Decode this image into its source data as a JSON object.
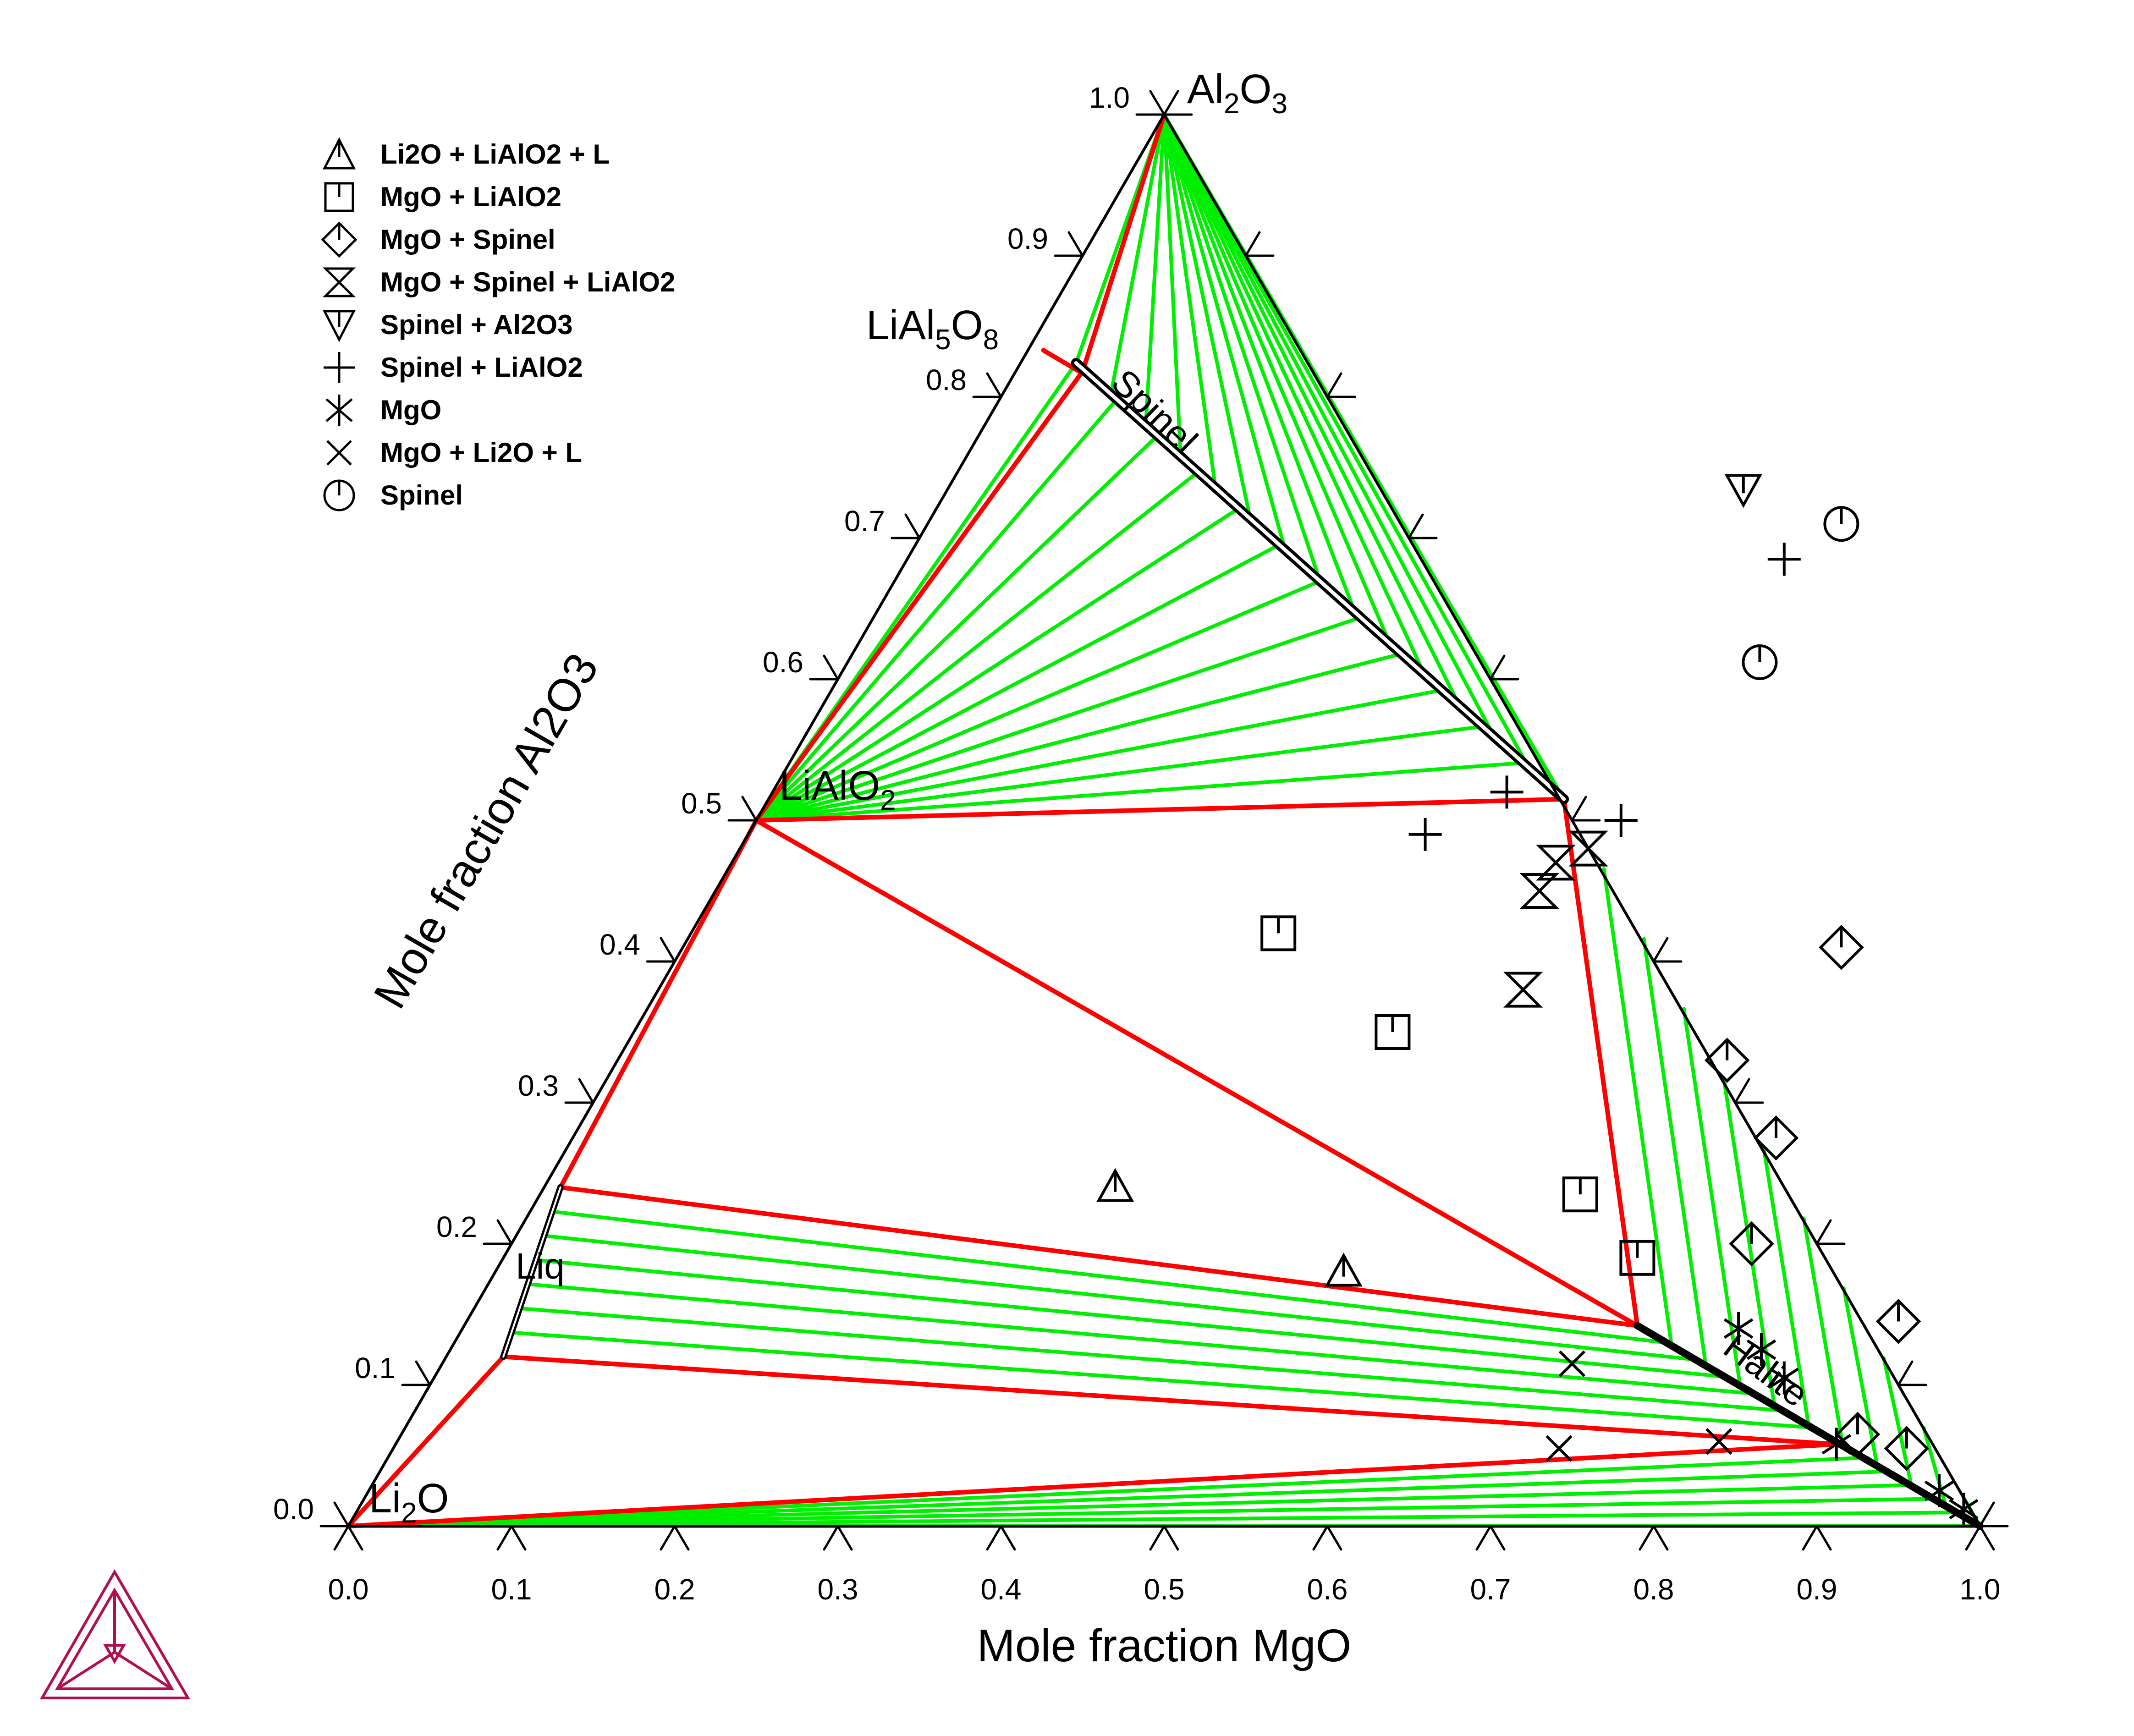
{
  "chart_data": {
    "type": "ternary-phase-diagram",
    "components": {
      "bottom_left": "Li2O",
      "bottom_right": "MgO",
      "top": "Al2O3"
    },
    "xlabel": "Mole fraction MgO",
    "ylabel": "Mole fraction Al2O3",
    "xlim": [
      0,
      1
    ],
    "ylim": [
      0,
      1
    ],
    "ticks": [
      "0.0",
      "0.1",
      "0.2",
      "0.3",
      "0.4",
      "0.5",
      "0.6",
      "0.7",
      "0.8",
      "0.9",
      "1.0"
    ],
    "corner_labels": {
      "top": {
        "main": "Al",
        "sub1": "2",
        "mid": "O",
        "sub2": "3"
      },
      "bottom_left": {
        "main": "Li",
        "sub1": "2",
        "mid": "O",
        "sub2": ""
      }
    },
    "phase_labels": {
      "LiAl5O8": {
        "main": "LiAl",
        "sub1": "5",
        "mid": "O",
        "sub2": "8"
      },
      "LiAlO2": {
        "main": "LiAlO",
        "sub1": "2",
        "mid": "",
        "sub2": ""
      },
      "spinel": "Spinel",
      "halite": "Halite",
      "liquid": "Liq"
    },
    "legend": [
      {
        "symbol": "triangle-up",
        "label": "Li2O + LiAlO2 + L"
      },
      {
        "symbol": "square",
        "label": "MgO + LiAlO2"
      },
      {
        "symbol": "diamond",
        "label": "MgO + Spinel"
      },
      {
        "symbol": "hourglass",
        "label": "MgO + Spinel + LiAlO2"
      },
      {
        "symbol": "triangle-down",
        "label": "Spinel + Al2O3"
      },
      {
        "symbol": "plus",
        "label": "Spinel + LiAlO2"
      },
      {
        "symbol": "asterisk",
        "label": "MgO"
      },
      {
        "symbol": "cross",
        "label": "MgO + Li2O + L"
      },
      {
        "symbol": "circle",
        "label": "Spinel"
      }
    ],
    "colors": {
      "tie_line": "#00ee00",
      "boundary": "#ff0000",
      "phase": "#000000",
      "logo": "#b01050"
    },
    "phase_boundaries": [
      {
        "name": "Li2O-Liq tie triangle edge",
        "x": [
          0.0,
          0.095
        ],
        "y": [
          0.0,
          0.12
        ]
      },
      {
        "name": "Liq-Halite lower edge",
        "x": [
          0.095,
          0.912
        ],
        "y": [
          0.12,
          0.058
        ]
      },
      {
        "name": "Li2O-Halite edge",
        "x": [
          0.0,
          0.912
        ],
        "y": [
          0.0,
          0.058
        ]
      },
      {
        "name": "Liq-LiAlO2 edge",
        "x": [
          0.13,
          0.25
        ],
        "y": [
          0.24,
          0.5
        ]
      },
      {
        "name": "Liq-Halite upper edge",
        "x": [
          0.13,
          0.79
        ],
        "y": [
          0.24,
          0.142
        ]
      },
      {
        "name": "LiAlO2-Halite edge",
        "x": [
          0.25,
          0.79
        ],
        "y": [
          0.5,
          0.142
        ]
      },
      {
        "name": "LiAlO2-Spinel edge",
        "x": [
          0.25,
          0.745
        ],
        "y": [
          0.5,
          0.515
        ]
      },
      {
        "name": "Spinel-Halite edge",
        "x": [
          0.745,
          0.79
        ],
        "y": [
          0.515,
          0.142
        ]
      },
      {
        "name": "LiAlO2-LiAl5O8 edge",
        "x": [
          0.25,
          0.45
        ],
        "y": [
          0.5,
          0.818
        ]
      },
      {
        "name": "LiAl5O8-Al2O3 edge",
        "x": [
          0.45,
          0.5
        ],
        "y": [
          0.818,
          1.0
        ]
      },
      {
        "name": "LiAl5O8-Spinel short edge",
        "x": [
          0.426,
          0.448
        ],
        "y": [
          0.833,
          0.818
        ]
      }
    ],
    "single_phase_lines": [
      {
        "name": "Spinel",
        "x": [
          0.446,
          0.745
        ],
        "y": [
          0.824,
          0.515
        ]
      },
      {
        "name": "Halite",
        "x": [
          0.79,
          1.0
        ],
        "y": [
          0.142,
          0.0
        ]
      },
      {
        "name": "Liq",
        "x": [
          0.095,
          0.13
        ],
        "y": [
          0.12,
          0.24
        ]
      }
    ],
    "tie_line_fans": [
      {
        "from": "Al2O3",
        "to": "Spinel",
        "count": 14
      },
      {
        "from": "Spinel",
        "to": "Halite",
        "count": 10
      },
      {
        "from": "LiAlO2",
        "to": "Spinel",
        "count": 12
      },
      {
        "from": "Liq",
        "to": "Halite",
        "count": 7
      },
      {
        "from": "Li2O",
        "to": "Halite",
        "count": 6
      }
    ],
    "points": [
      {
        "symbol": "triangle-up",
        "x": [
          0.47,
          0.61
        ],
        "y": [
          0.24,
          0.18
        ]
      },
      {
        "symbol": "square",
        "x": [
          0.57,
          0.64,
          0.755,
          0.79
        ],
        "y": [
          0.42,
          0.35,
          0.235,
          0.19
        ]
      },
      {
        "symbol": "diamond",
        "x": [
          0.955,
          0.925,
          0.95,
          0.86,
          0.875,
          0.845,
          0.915
        ],
        "y": [
          0.055,
          0.065,
          0.145,
          0.2,
          0.275,
          0.33,
          0.41
        ]
      },
      {
        "symbol": "hourglass",
        "x": [
          0.73,
          0.74,
          0.76,
          0.72
        ],
        "y": [
          0.45,
          0.47,
          0.48,
          0.38
        ]
      },
      {
        "symbol": "triangle-down",
        "x": [
          0.855
        ],
        "y": [
          0.735
        ]
      },
      {
        "symbol": "plus",
        "x": [
          0.78,
          0.66,
          0.71,
          0.88
        ],
        "y": [
          0.5,
          0.49,
          0.52,
          0.685
        ]
      },
      {
        "symbol": "asterisk",
        "x": [
          0.852,
          0.866,
          0.88,
          0.912,
          0.975,
          0.99
        ],
        "y": [
          0.14,
          0.125,
          0.105,
          0.058,
          0.025,
          0.012
        ]
      },
      {
        "symbol": "cross",
        "x": [
          0.75,
          0.742,
          0.84
        ],
        "y": [
          0.115,
          0.055,
          0.06
        ]
      },
      {
        "symbol": "circle",
        "x": [
          0.915,
          0.865
        ],
        "y": [
          0.71,
          0.612
        ]
      }
    ]
  }
}
